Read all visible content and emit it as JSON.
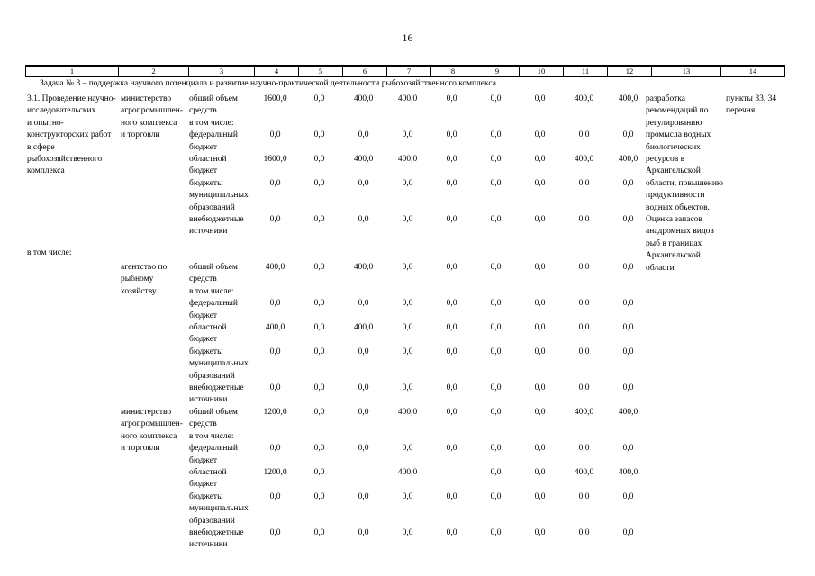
{
  "page": {
    "number": "16"
  },
  "table": {
    "column_numbers": [
      "1",
      "2",
      "3",
      "4",
      "5",
      "6",
      "7",
      "8",
      "9",
      "10",
      "11",
      "12",
      "13",
      "14"
    ],
    "task_header": "Задача № 3 – поддержка научного потенциала и развитие научно-практической деятельности рыбохозяйственного комплекса",
    "row_3_1": {
      "activity": "3.1. Проведение научно-\nисследовательских\nи опытно-\nконструкторских работ\nв сфере\nрыбохозяйственного\nкомплекса",
      "including_label": "в том числе:",
      "expected_results": "разработка\nрекомендаций по\nрегулированию\nпромысла водных\nбиологических\nресурсов в\nАрхангельской\nобласти, повышению\nпродуктивности\nводных объектов.\nОценка запасов\nанадромных видов\nрыб в границах\nАрхангельской\nобласти",
      "program_refs": "пункты 33, 34\nперечня",
      "blocks": [
        {
          "executor": "министерство\nагропромышлен-\nного комплекса\nи торговли",
          "rows": [
            {
              "label": "общий объем\nсредств",
              "values": [
                "1600,0",
                "0,0",
                "400,0",
                "400,0",
                "0,0",
                "0,0",
                "0,0",
                "400,0",
                "400,0"
              ]
            },
            {
              "label": "в том числе:",
              "values": []
            },
            {
              "label": "федеральный\nбюджет",
              "values": [
                "0,0",
                "0,0",
                "0,0",
                "0,0",
                "0,0",
                "0,0",
                "0,0",
                "0,0",
                "0,0"
              ]
            },
            {
              "label": "областной\nбюджет",
              "values": [
                "1600,0",
                "0,0",
                "400,0",
                "400,0",
                "0,0",
                "0,0",
                "0,0",
                "400,0",
                "400,0"
              ]
            },
            {
              "label": "бюджеты\nмуниципальных\nобразований",
              "values": [
                "0,0",
                "0,0",
                "0,0",
                "0,0",
                "0,0",
                "0,0",
                "0,0",
                "0,0",
                "0,0"
              ]
            },
            {
              "label": "внебюджетные\nисточники",
              "values": [
                "0,0",
                "0,0",
                "0,0",
                "0,0",
                "0,0",
                "0,0",
                "0,0",
                "0,0",
                "0,0"
              ]
            }
          ]
        },
        {
          "executor": "агентство по\nрыбному\nхозяйству",
          "rows": [
            {
              "label": "общий объем\nсредств",
              "values": [
                "400,0",
                "0,0",
                "400,0",
                "0,0",
                "0,0",
                "0,0",
                "0,0",
                "0,0",
                "0,0"
              ]
            },
            {
              "label": "в том числе:",
              "values": []
            },
            {
              "label": "федеральный\nбюджет",
              "values": [
                "0,0",
                "0,0",
                "0,0",
                "0,0",
                "0,0",
                "0,0",
                "0,0",
                "0,0",
                "0,0"
              ]
            },
            {
              "label": "областной\nбюджет",
              "values": [
                "400,0",
                "0,0",
                "400,0",
                "0,0",
                "0,0",
                "0,0",
                "0,0",
                "0,0",
                "0,0"
              ]
            },
            {
              "label": "бюджеты\nмуниципальных\nобразований",
              "values": [
                "0,0",
                "0,0",
                "0,0",
                "0,0",
                "0,0",
                "0,0",
                "0,0",
                "0,0",
                "0,0"
              ]
            },
            {
              "label": "внебюджетные\nисточники",
              "values": [
                "0,0",
                "0,0",
                "0,0",
                "0,0",
                "0,0",
                "0,0",
                "0,0",
                "0,0",
                "0,0"
              ]
            }
          ]
        },
        {
          "executor": "министерство\nагропромышлен-\nного комплекса\nи торговли",
          "rows": [
            {
              "label": "общий объем\nсредств",
              "values": [
                "1200,0",
                "0,0",
                "0,0",
                "400,0",
                "0,0",
                "0,0",
                "0,0",
                "400,0",
                "400,0"
              ]
            },
            {
              "label": "в том числе:",
              "values": []
            },
            {
              "label": "федеральный\nбюджет",
              "values": [
                "0,0",
                "0,0",
                "0,0",
                "0,0",
                "0,0",
                "0,0",
                "0,0",
                "0,0",
                "0,0"
              ]
            },
            {
              "label": "областной\nбюджет",
              "values": [
                "1200,0",
                "0,0",
                "",
                "400,0",
                "",
                "0,0",
                "0,0",
                "400,0",
                "400,0"
              ]
            },
            {
              "label": "бюджеты\nмуниципальных\nобразований",
              "values": [
                "0,0",
                "0,0",
                "0,0",
                "0,0",
                "0,0",
                "0,0",
                "0,0",
                "0,0",
                "0,0"
              ]
            },
            {
              "label": "внебюджетные\nисточники",
              "values": [
                "0,0",
                "0,0",
                "0,0",
                "0,0",
                "0,0",
                "0,0",
                "0,0",
                "0,0",
                "0,0"
              ]
            }
          ]
        }
      ]
    }
  }
}
